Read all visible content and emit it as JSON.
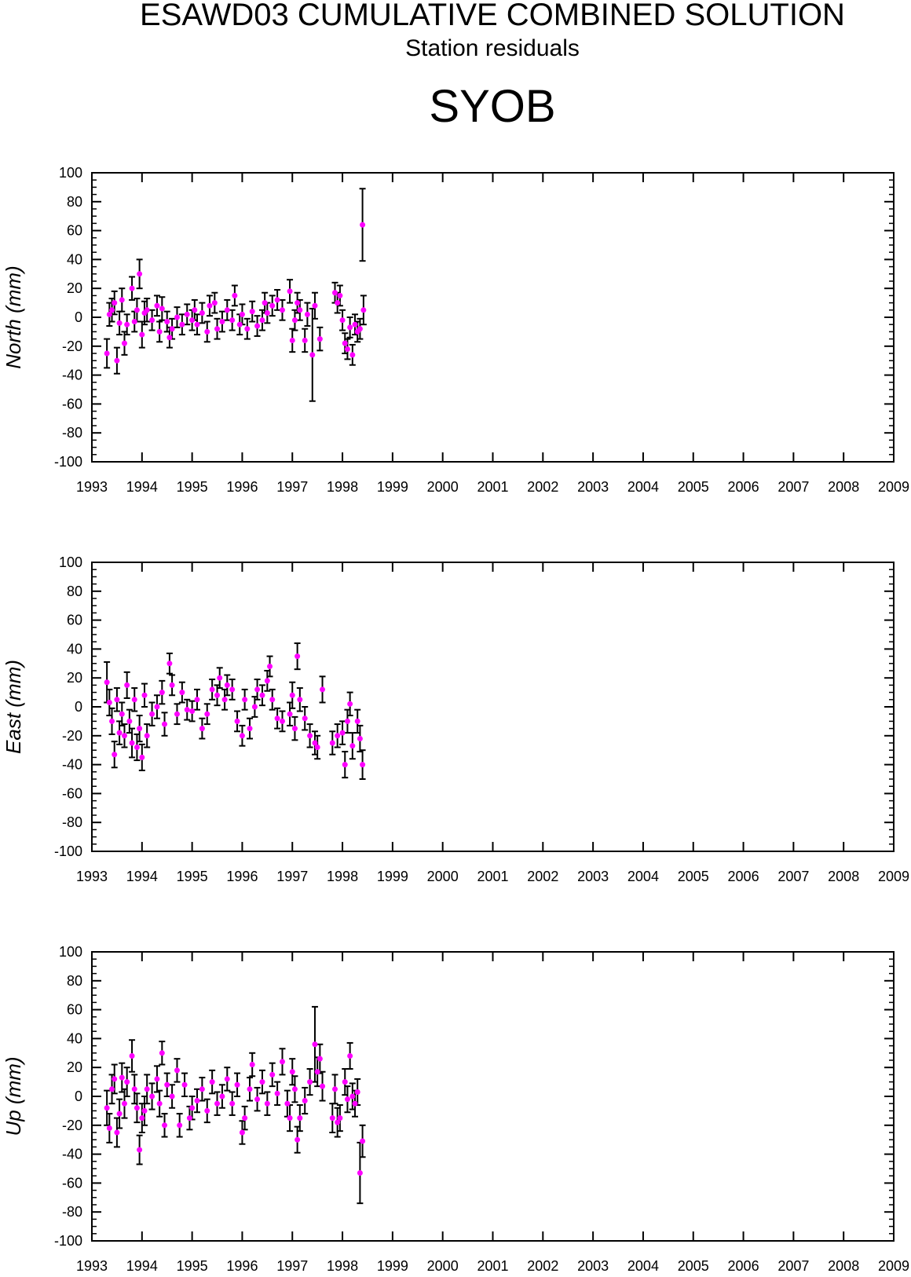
{
  "header": {
    "title": "ESAWD03 CUMULATIVE COMBINED SOLUTION",
    "subtitle": "Station residuals",
    "station": "SYOB"
  },
  "chart_data": [
    {
      "type": "scatter",
      "y_label": "North (mm)",
      "xlim": [
        1993,
        2009
      ],
      "ylim": [
        -100,
        100
      ],
      "xticks": [
        1993,
        1994,
        1995,
        1996,
        1997,
        1998,
        1999,
        2000,
        2001,
        2002,
        2003,
        2004,
        2005,
        2006,
        2007,
        2008,
        2009
      ],
      "yticks": [
        -100,
        -80,
        -60,
        -40,
        -20,
        0,
        20,
        40,
        60,
        80,
        100
      ],
      "x": [
        1993.3,
        1993.35,
        1993.4,
        1993.45,
        1993.5,
        1993.55,
        1993.6,
        1993.65,
        1993.7,
        1993.8,
        1993.85,
        1993.9,
        1993.95,
        1994.0,
        1994.05,
        1994.1,
        1994.2,
        1994.3,
        1994.35,
        1994.4,
        1994.5,
        1994.55,
        1994.6,
        1994.7,
        1994.8,
        1994.9,
        1995.0,
        1995.05,
        1995.1,
        1995.2,
        1995.3,
        1995.35,
        1995.45,
        1995.5,
        1995.6,
        1995.7,
        1995.8,
        1995.85,
        1995.95,
        1996.0,
        1996.1,
        1996.2,
        1996.3,
        1996.4,
        1996.45,
        1996.5,
        1996.6,
        1996.7,
        1996.8,
        1996.95,
        1997.0,
        1997.05,
        1997.1,
        1997.15,
        1997.25,
        1997.3,
        1997.4,
        1997.45,
        1997.55,
        1997.85,
        1997.9,
        1997.95,
        1998.0,
        1998.05,
        1998.1,
        1998.15,
        1998.2,
        1998.25,
        1998.3,
        1998.35,
        1998.4,
        1998.42
      ],
      "series": [
        {
          "color": "#ff00ff",
          "error_color": "#000000",
          "values": [
            -25,
            2,
            5,
            10,
            -30,
            -4,
            12,
            -18,
            -5,
            20,
            -3,
            5,
            30,
            -12,
            3,
            5,
            -2,
            8,
            -10,
            6,
            -3,
            -14,
            -8,
            0,
            -5,
            2,
            -2,
            5,
            -5,
            3,
            -10,
            8,
            10,
            -8,
            -3,
            5,
            -2,
            15,
            -5,
            2,
            -8,
            4,
            -6,
            -2,
            10,
            3,
            8,
            12,
            5,
            18,
            -16,
            -2,
            10,
            5,
            -16,
            2,
            -26,
            8,
            -15,
            17,
            10,
            15,
            -2,
            -18,
            -22,
            -7,
            -26,
            -5,
            -10,
            -8,
            64,
            5
          ],
          "errors": [
            10,
            8,
            8,
            8,
            9,
            8,
            8,
            8,
            7,
            8,
            7,
            8,
            10,
            9,
            8,
            8,
            7,
            7,
            7,
            8,
            7,
            7,
            7,
            7,
            7,
            7,
            7,
            7,
            7,
            7,
            7,
            7,
            7,
            7,
            7,
            7,
            7,
            7,
            7,
            7,
            7,
            7,
            7,
            7,
            7,
            7,
            7,
            7,
            7,
            8,
            8,
            7,
            7,
            7,
            8,
            8,
            32,
            9,
            8,
            7,
            7,
            7,
            7,
            7,
            7,
            7,
            7,
            7,
            7,
            7,
            25,
            10
          ]
        }
      ]
    },
    {
      "type": "scatter",
      "y_label": "East (mm)",
      "xlim": [
        1993,
        2009
      ],
      "ylim": [
        -100,
        100
      ],
      "xticks": [
        1993,
        1994,
        1995,
        1996,
        1997,
        1998,
        1999,
        2000,
        2001,
        2002,
        2003,
        2004,
        2005,
        2006,
        2007,
        2008,
        2009
      ],
      "yticks": [
        -100,
        -80,
        -60,
        -40,
        -20,
        0,
        20,
        40,
        60,
        80,
        100
      ],
      "x": [
        1993.3,
        1993.35,
        1993.4,
        1993.45,
        1993.5,
        1993.55,
        1993.6,
        1993.65,
        1993.7,
        1993.75,
        1993.8,
        1993.85,
        1993.9,
        1993.95,
        1994.0,
        1994.05,
        1994.1,
        1994.2,
        1994.3,
        1994.4,
        1994.45,
        1994.55,
        1994.6,
        1994.7,
        1994.8,
        1994.9,
        1995.0,
        1995.1,
        1995.2,
        1995.3,
        1995.4,
        1995.5,
        1995.55,
        1995.65,
        1995.7,
        1995.8,
        1995.9,
        1996.0,
        1996.05,
        1996.15,
        1996.25,
        1996.3,
        1996.4,
        1996.5,
        1996.55,
        1996.6,
        1996.7,
        1996.8,
        1996.95,
        1997.0,
        1997.05,
        1997.1,
        1997.15,
        1997.25,
        1997.35,
        1997.45,
        1997.5,
        1997.6,
        1997.8,
        1997.9,
        1998.0,
        1998.05,
        1998.1,
        1998.15,
        1998.2,
        1998.3,
        1998.35,
        1998.4
      ],
      "series": [
        {
          "color": "#ff00ff",
          "error_color": "#000000",
          "values": [
            17,
            3,
            -10,
            -33,
            5,
            -18,
            -5,
            -20,
            15,
            -10,
            -25,
            5,
            -28,
            -15,
            -35,
            8,
            -20,
            -5,
            0,
            10,
            -12,
            30,
            15,
            -5,
            10,
            -2,
            -3,
            5,
            -15,
            -5,
            12,
            8,
            20,
            5,
            15,
            12,
            -10,
            -20,
            5,
            -15,
            0,
            12,
            8,
            18,
            28,
            5,
            -8,
            -10,
            -5,
            8,
            -15,
            35,
            5,
            -8,
            -20,
            -25,
            -28,
            12,
            -25,
            -20,
            -18,
            -40,
            -10,
            2,
            -27,
            -10,
            -22,
            -40
          ],
          "errors": [
            14,
            9,
            9,
            9,
            8,
            8,
            8,
            8,
            9,
            8,
            10,
            8,
            9,
            9,
            9,
            8,
            8,
            8,
            8,
            8,
            8,
            7,
            7,
            7,
            7,
            7,
            7,
            7,
            7,
            7,
            7,
            7,
            7,
            7,
            7,
            7,
            7,
            7,
            7,
            7,
            7,
            7,
            7,
            7,
            7,
            7,
            7,
            7,
            8,
            9,
            8,
            9,
            8,
            8,
            8,
            8,
            8,
            9,
            8,
            8,
            8,
            9,
            8,
            8,
            9,
            8,
            9,
            10
          ]
        }
      ]
    },
    {
      "type": "scatter",
      "y_label": "Up (mm)",
      "xlim": [
        1993,
        2009
      ],
      "ylim": [
        -100,
        100
      ],
      "xticks": [
        1993,
        1994,
        1995,
        1996,
        1997,
        1998,
        1999,
        2000,
        2001,
        2002,
        2003,
        2004,
        2005,
        2006,
        2007,
        2008,
        2009
      ],
      "yticks": [
        -100,
        -80,
        -60,
        -40,
        -20,
        0,
        20,
        40,
        60,
        80,
        100
      ],
      "x": [
        1993.3,
        1993.35,
        1993.4,
        1993.45,
        1993.5,
        1993.55,
        1993.6,
        1993.65,
        1993.7,
        1993.8,
        1993.85,
        1993.9,
        1993.95,
        1994.0,
        1994.05,
        1994.1,
        1994.2,
        1994.3,
        1994.35,
        1994.4,
        1994.45,
        1994.5,
        1994.6,
        1994.7,
        1994.75,
        1994.85,
        1994.95,
        1995.0,
        1995.1,
        1995.2,
        1995.3,
        1995.4,
        1995.5,
        1995.6,
        1995.7,
        1995.8,
        1995.9,
        1996.0,
        1996.05,
        1996.15,
        1996.2,
        1996.3,
        1996.4,
        1996.5,
        1996.6,
        1996.7,
        1996.8,
        1996.9,
        1996.95,
        1997.0,
        1997.05,
        1997.1,
        1997.15,
        1997.25,
        1997.35,
        1997.45,
        1997.5,
        1997.55,
        1997.6,
        1997.8,
        1997.85,
        1997.9,
        1997.95,
        1998.05,
        1998.1,
        1998.15,
        1998.2,
        1998.25,
        1998.3,
        1998.35,
        1998.4
      ],
      "series": [
        {
          "color": "#ff00ff",
          "error_color": "#000000",
          "values": [
            -8,
            -22,
            5,
            12,
            -25,
            -12,
            13,
            -5,
            10,
            28,
            5,
            -8,
            -37,
            -15,
            -10,
            5,
            0,
            12,
            -5,
            30,
            -20,
            8,
            0,
            18,
            -20,
            8,
            -15,
            -8,
            -3,
            5,
            -10,
            10,
            -5,
            0,
            12,
            -5,
            8,
            -25,
            -15,
            5,
            22,
            -2,
            10,
            -5,
            15,
            2,
            24,
            -5,
            -15,
            17,
            5,
            -30,
            -15,
            -3,
            10,
            36,
            17,
            26,
            7,
            -15,
            5,
            -18,
            -15,
            10,
            -2,
            28,
            0,
            -5,
            3,
            -53,
            -31
          ],
          "errors": [
            12,
            10,
            10,
            10,
            10,
            10,
            10,
            10,
            10,
            11,
            10,
            10,
            10,
            10,
            10,
            10,
            9,
            9,
            9,
            8,
            8,
            8,
            8,
            8,
            8,
            8,
            8,
            8,
            8,
            8,
            8,
            8,
            8,
            8,
            8,
            8,
            8,
            8,
            8,
            8,
            8,
            8,
            8,
            8,
            8,
            8,
            9,
            9,
            9,
            9,
            9,
            9,
            9,
            9,
            9,
            26,
            10,
            10,
            10,
            10,
            10,
            10,
            9,
            9,
            9,
            9,
            9,
            9,
            9,
            21,
            11
          ]
        }
      ]
    }
  ]
}
